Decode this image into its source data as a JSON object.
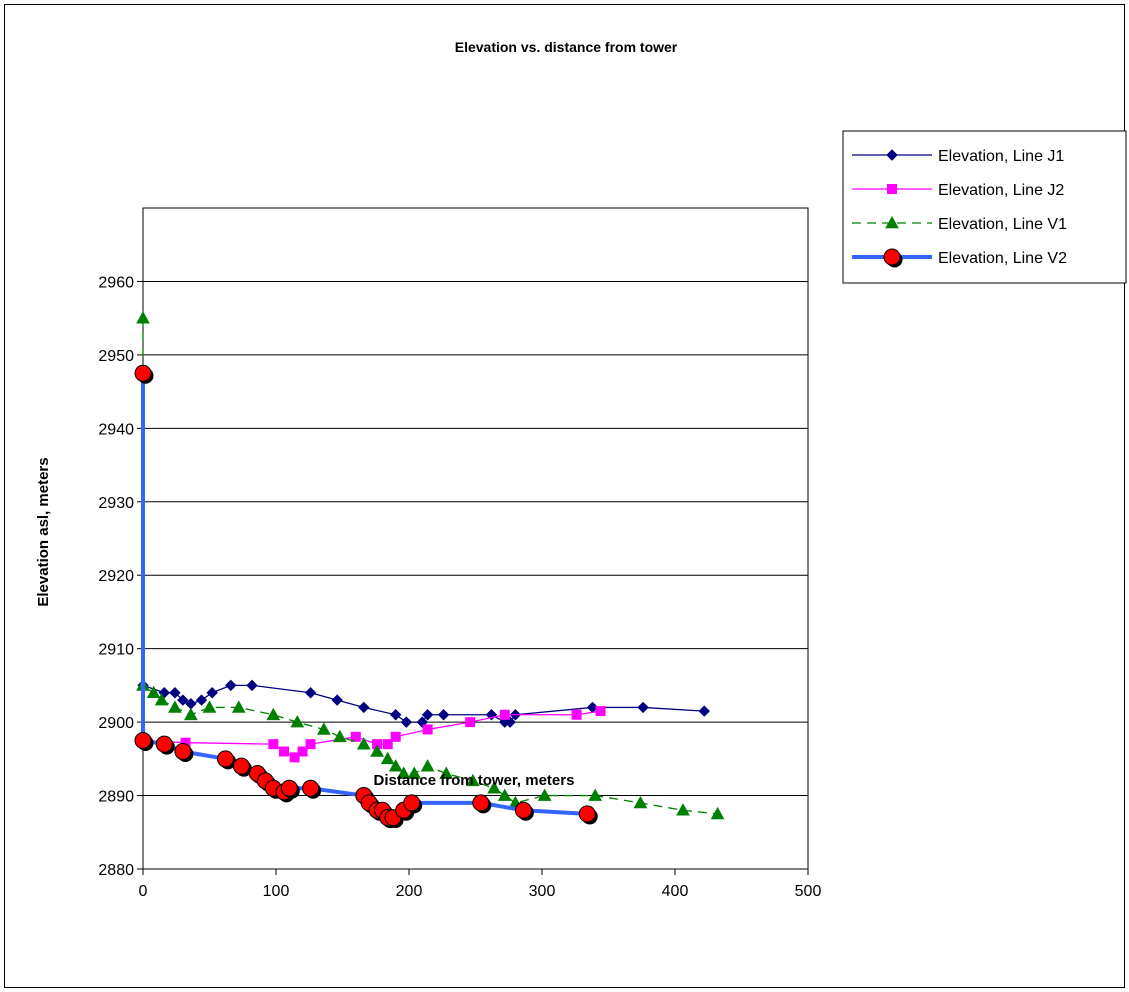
{
  "chart_data": {
    "type": "scatter",
    "title": "Elevation vs. distance from tower",
    "xlabel": "Distance from tower, meters",
    "ylabel": "Elevation asl, meters",
    "xlim": [
      0,
      500
    ],
    "ylim": [
      2880,
      2970
    ],
    "xticks": [
      "0",
      "100",
      "200",
      "300",
      "400",
      "500"
    ],
    "yticks": [
      "2880",
      "2890",
      "2900",
      "2910",
      "2920",
      "2930",
      "2940",
      "2950",
      "2960"
    ],
    "grid": "horizontal",
    "legend_position": "top-right",
    "series": [
      {
        "name": "Elevation, Line J1",
        "color": "#000080",
        "line": "solid",
        "marker": "diamond",
        "x": [
          0,
          16,
          24,
          30,
          36,
          44,
          52,
          66,
          82,
          126,
          146,
          166,
          190,
          198,
          210,
          214,
          226,
          262,
          272,
          276,
          280,
          338,
          376,
          422
        ],
        "y": [
          2905,
          2904,
          2904,
          2903,
          2902.5,
          2903,
          2904,
          2905,
          2905,
          2904,
          2903,
          2902,
          2901,
          2900,
          2900,
          2901,
          2901,
          2901,
          2900,
          2900,
          2901,
          2902,
          2902,
          2901.5
        ]
      },
      {
        "name": "Elevation, Line J2",
        "color": "#ff00ff",
        "line": "solid",
        "marker": "square",
        "x": [
          0,
          32,
          98,
          106,
          114,
          120,
          126,
          160,
          176,
          184,
          190,
          214,
          246,
          272,
          326,
          344
        ],
        "y": [
          2897.5,
          2897.2,
          2897,
          2896,
          2895.2,
          2896,
          2897,
          2898,
          2897,
          2897,
          2898,
          2899,
          2900,
          2901,
          2901,
          2901.5
        ]
      },
      {
        "name": "Elevation, Line V1",
        "color": "#008000",
        "line": "dashed",
        "marker": "triangle",
        "x": [
          0,
          0,
          8,
          14,
          24,
          36,
          50,
          72,
          98,
          116,
          136,
          148,
          166,
          176,
          184,
          190,
          196,
          204,
          214,
          228,
          248,
          264,
          272,
          280,
          302,
          340,
          374,
          406,
          432
        ],
        "y": [
          2955,
          2905,
          2904,
          2903,
          2902,
          2901,
          2902,
          2902,
          2901,
          2900,
          2899,
          2898,
          2897,
          2896,
          2895,
          2894,
          2893,
          2893,
          2894,
          2893,
          2892,
          2891,
          2890,
          2889,
          2890,
          2890,
          2889,
          2888,
          2887.5
        ]
      },
      {
        "name": "Elevation, Line V2",
        "color": "#3366ff",
        "line": "thick",
        "marker": "circle",
        "x": [
          0,
          0,
          16,
          30,
          62,
          74,
          86,
          92,
          98,
          106,
          110,
          126,
          166,
          170,
          176,
          180,
          184,
          188,
          196,
          202,
          254,
          286,
          334
        ],
        "y": [
          2947.5,
          2897.5,
          2897,
          2896,
          2895,
          2894,
          2893,
          2892,
          2891,
          2890.5,
          2891,
          2891,
          2890,
          2889,
          2888,
          2888,
          2887,
          2887,
          2888,
          2889,
          2889,
          2888,
          2887.5
        ]
      }
    ]
  }
}
